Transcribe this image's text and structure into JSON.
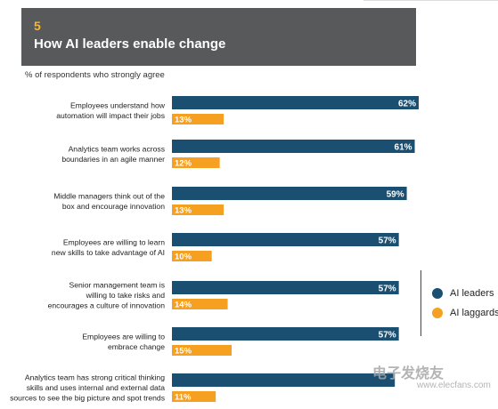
{
  "header": {
    "number": "5",
    "title": "How AI leaders enable change"
  },
  "subtitle": "% of respondents who strongly agree",
  "legend": [
    {
      "label": "AI leaders",
      "color": "#1b4f72"
    },
    {
      "label": "AI laggards",
      "color": "#f5a020"
    }
  ],
  "watermark": {
    "text": "电子发烧友",
    "url": "www.elecfans.com"
  },
  "chart_data": {
    "type": "bar",
    "orientation": "horizontal",
    "unit": "%",
    "xlim": [
      0,
      62
    ],
    "grid": false,
    "legend_position": "right",
    "categories": [
      [
        "Employees understand how",
        "automation will impact their jobs"
      ],
      [
        "Analytics team works across",
        "boundaries in an agile manner"
      ],
      [
        "Middle managers think out of the",
        "box and encourage innovation"
      ],
      [
        "Employees are willing to learn",
        "new skills to take advantage of AI"
      ],
      [
        "Senior management team is",
        "willing to take risks and",
        "encourages a culture of innovation"
      ],
      [
        "Employees are willing to",
        "embrace change"
      ],
      [
        "Analytics team has strong critical thinking",
        "skills and uses internal and external data",
        "sources to see the big picture and spot trends"
      ]
    ],
    "series": [
      {
        "name": "AI leaders",
        "color": "#1b4f72",
        "values": [
          62,
          61,
          59,
          57,
          57,
          57,
          56
        ]
      },
      {
        "name": "AI laggards",
        "color": "#f5a020",
        "values": [
          13,
          12,
          13,
          10,
          14,
          15,
          11
        ]
      }
    ],
    "value_labels": {
      "AI leaders": [
        "62%",
        "61%",
        "59%",
        "57%",
        "57%",
        "57%",
        ""
      ],
      "AI laggards": [
        "13%",
        "12%",
        "13%",
        "10%",
        "14%",
        "15%",
        "11%"
      ]
    }
  }
}
